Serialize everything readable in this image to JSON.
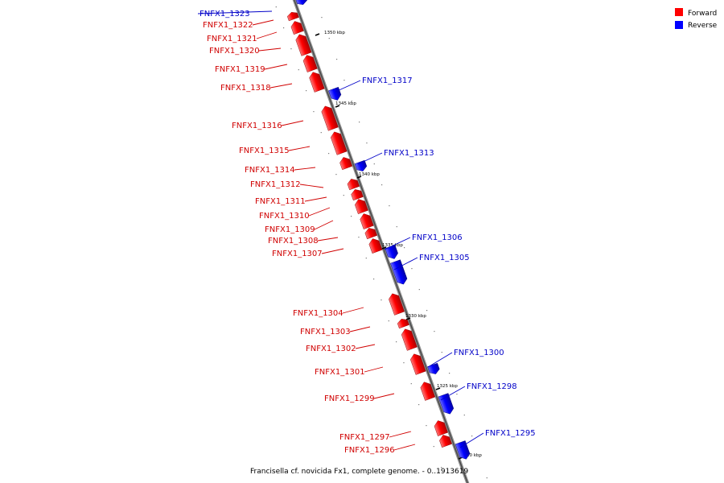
{
  "legend": {
    "forward_label": "Forward",
    "reverse_label": "Reverse",
    "forward_color": "#ff0000",
    "reverse_color": "#0000ff"
  },
  "caption": "Francisella cf. novicida Fx1, complete genome. - 0..1913619",
  "ticks": [
    "1350 kbp",
    "1345 kbp",
    "1340 kbp",
    "1335 kbp",
    "1330 kbp",
    "1325 kbp",
    "1320 kbp"
  ],
  "features": [
    {
      "name": "FNFX1_1323",
      "strand": "reverse"
    },
    {
      "name": "FNFX1_1322",
      "strand": "forward"
    },
    {
      "name": "FNFX1_1321",
      "strand": "forward"
    },
    {
      "name": "FNFX1_1320",
      "strand": "forward"
    },
    {
      "name": "FNFX1_1319",
      "strand": "forward"
    },
    {
      "name": "FNFX1_1318",
      "strand": "forward"
    },
    {
      "name": "FNFX1_1317",
      "strand": "reverse"
    },
    {
      "name": "FNFX1_1316",
      "strand": "forward"
    },
    {
      "name": "FNFX1_1315",
      "strand": "forward"
    },
    {
      "name": "FNFX1_1314",
      "strand": "forward"
    },
    {
      "name": "FNFX1_1313",
      "strand": "reverse"
    },
    {
      "name": "FNFX1_1312",
      "strand": "forward"
    },
    {
      "name": "FNFX1_1311",
      "strand": "forward"
    },
    {
      "name": "FNFX1_1310",
      "strand": "forward"
    },
    {
      "name": "FNFX1_1309",
      "strand": "forward"
    },
    {
      "name": "FNFX1_1308",
      "strand": "forward"
    },
    {
      "name": "FNFX1_1307",
      "strand": "forward"
    },
    {
      "name": "FNFX1_1306",
      "strand": "reverse"
    },
    {
      "name": "FNFX1_1305",
      "strand": "reverse"
    },
    {
      "name": "FNFX1_1304",
      "strand": "forward"
    },
    {
      "name": "FNFX1_1303",
      "strand": "forward"
    },
    {
      "name": "FNFX1_1302",
      "strand": "forward"
    },
    {
      "name": "FNFX1_1301",
      "strand": "forward"
    },
    {
      "name": "FNFX1_1300",
      "strand": "reverse"
    },
    {
      "name": "FNFX1_1299",
      "strand": "forward"
    },
    {
      "name": "FNFX1_1298",
      "strand": "reverse"
    },
    {
      "name": "FNFX1_1297",
      "strand": "forward"
    },
    {
      "name": "FNFX1_1296",
      "strand": "forward"
    },
    {
      "name": "FNFX1_1295",
      "strand": "reverse"
    }
  ]
}
